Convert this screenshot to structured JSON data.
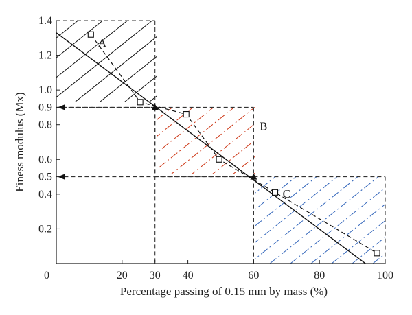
{
  "chart_data": {
    "type": "scatter",
    "title": "",
    "xlabel": "Percentage passing of 0.15 mm by mass (%)",
    "ylabel": "Finess modulus (Mx)",
    "xlim": [
      0,
      100
    ],
    "ylim": [
      0,
      1.4
    ],
    "x_ticks": [
      0,
      20,
      30,
      40,
      60,
      80,
      100
    ],
    "y_ticks": [
      0.2,
      0.4,
      0.5,
      0.6,
      0.8,
      0.9,
      1.0,
      1.2,
      1.4
    ],
    "grid": false,
    "series": [
      {
        "marker": "open-square",
        "line": "dashed",
        "x": [
          10.5,
          25.5,
          39.5,
          49.5,
          66.5,
          97.5
        ],
        "y": [
          1.32,
          0.93,
          0.86,
          0.6,
          0.41,
          0.06
        ]
      },
      {
        "marker": "filled-triangle",
        "x": [
          30,
          60
        ],
        "y": [
          0.9,
          0.5
        ]
      }
    ],
    "fit_line": {
      "style": "solid",
      "from": [
        0,
        1.33
      ],
      "to": [
        94,
        0
      ]
    },
    "reference_lines": [
      {
        "y": 0.9,
        "x_from": 30,
        "direction": "arrow-to-y-axis"
      },
      {
        "y": 0.5,
        "x_from": 60,
        "direction": "arrow-to-y-axis"
      }
    ],
    "regions": [
      {
        "label": "A",
        "x": [
          0,
          30
        ],
        "y": [
          0.9,
          1.4
        ],
        "hatch_color": "#111111",
        "hatch_style": "solid"
      },
      {
        "label": "B",
        "x": [
          30,
          60
        ],
        "y": [
          0.5,
          0.9
        ],
        "hatch_color": "#cc3311",
        "hatch_style": "dash-dot"
      },
      {
        "label": "C",
        "x": [
          60,
          100
        ],
        "y": [
          0,
          0.5
        ],
        "hatch_color": "#3366bb",
        "hatch_style": "dash-dot"
      }
    ]
  }
}
